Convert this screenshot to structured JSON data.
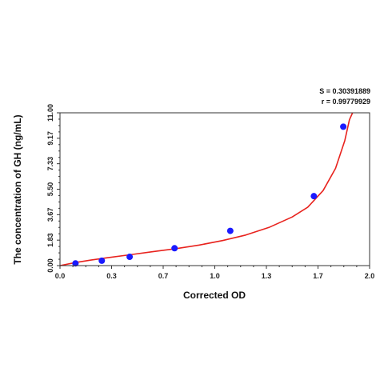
{
  "chart_data": {
    "type": "scatter",
    "title": "",
    "xlabel": "Corrected OD",
    "ylabel": "The concentration of GH (ng/mL)",
    "xlim": [
      0,
      2.0
    ],
    "ylim": [
      0,
      11.0
    ],
    "x_ticks": [
      "0.0",
      "0.3",
      "0.7",
      "1.0",
      "1.3",
      "1.7",
      "2.0"
    ],
    "y_ticks": [
      "0.00",
      "1.83",
      "3.67",
      "5.50",
      "7.33",
      "9.17",
      "11.00"
    ],
    "grid": false,
    "legend": "none",
    "annotations": [
      "S = 0.30391889",
      "r = 0.99779929"
    ],
    "series": [
      {
        "kind": "points",
        "color": "#1a1aff",
        "points": [
          {
            "x": 0.1,
            "y": 0.16
          },
          {
            "x": 0.27,
            "y": 0.35
          },
          {
            "x": 0.45,
            "y": 0.63
          },
          {
            "x": 0.74,
            "y": 1.25
          },
          {
            "x": 1.1,
            "y": 2.5
          },
          {
            "x": 1.64,
            "y": 5.0
          },
          {
            "x": 1.83,
            "y": 10.0
          }
        ]
      },
      {
        "kind": "fit-curve",
        "color": "#e8231e",
        "points": [
          {
            "x": 0.0,
            "y": 0.0
          },
          {
            "x": 0.1,
            "y": 0.22
          },
          {
            "x": 0.2,
            "y": 0.4
          },
          {
            "x": 0.3,
            "y": 0.56
          },
          {
            "x": 0.45,
            "y": 0.78
          },
          {
            "x": 0.6,
            "y": 1.0
          },
          {
            "x": 0.75,
            "y": 1.22
          },
          {
            "x": 0.9,
            "y": 1.48
          },
          {
            "x": 1.05,
            "y": 1.8
          },
          {
            "x": 1.2,
            "y": 2.2
          },
          {
            "x": 1.35,
            "y": 2.75
          },
          {
            "x": 1.5,
            "y": 3.5
          },
          {
            "x": 1.6,
            "y": 4.2
          },
          {
            "x": 1.7,
            "y": 5.4
          },
          {
            "x": 1.78,
            "y": 7.0
          },
          {
            "x": 1.84,
            "y": 9.0
          },
          {
            "x": 1.87,
            "y": 10.5
          },
          {
            "x": 1.89,
            "y": 11.0
          }
        ]
      }
    ]
  }
}
